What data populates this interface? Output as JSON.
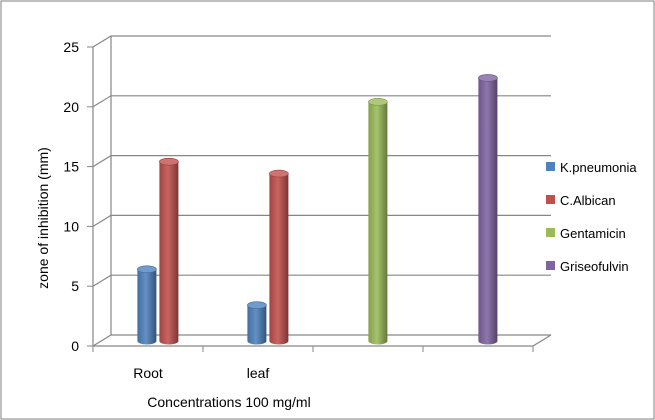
{
  "chart_data": {
    "type": "bar",
    "categories": [
      "Root",
      "leaf",
      "",
      ""
    ],
    "series": [
      {
        "name": "K.pneumonia",
        "color": "#4f81bd",
        "values": [
          6,
          3,
          null,
          null
        ]
      },
      {
        "name": "C.Albican",
        "color": "#c0504d",
        "values": [
          15,
          14,
          null,
          null
        ]
      },
      {
        "name": "Gentamicin",
        "color": "#9bbb59",
        "values": [
          null,
          null,
          20,
          null
        ]
      },
      {
        "name": "Griseofulvin",
        "color": "#8064a2",
        "values": [
          null,
          null,
          null,
          22
        ]
      }
    ],
    "xlabel": "Concentrations 100 mg/ml",
    "ylabel": "zone of inhibition  (mm)",
    "ylim": [
      0,
      25
    ],
    "yticks": [
      "0",
      "5",
      "10",
      "15",
      "20",
      "25"
    ],
    "grid": true,
    "legend_position": "right"
  }
}
